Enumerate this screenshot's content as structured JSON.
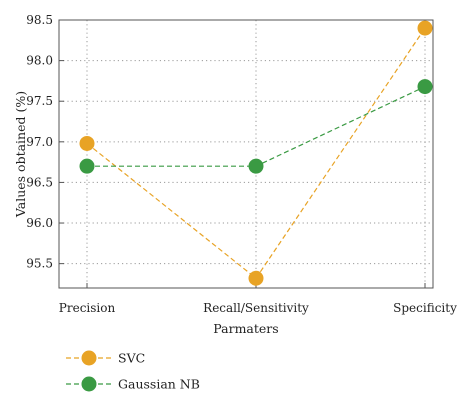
{
  "chart_data": {
    "type": "line",
    "categories": [
      "Precision",
      "Recall/Sensitivity",
      "Specificity"
    ],
    "series": [
      {
        "name": "SVC",
        "values": [
          96.98,
          95.32,
          98.4
        ],
        "color": "#e8a325"
      },
      {
        "name": "Gaussian NB",
        "values": [
          96.7,
          96.7,
          97.68
        ],
        "color": "#3a9a43"
      }
    ],
    "xlabel": "Parmaters",
    "ylabel": "Values obtained (%)",
    "ylim": [
      95.2,
      98.5
    ],
    "yticks": [
      "95.5",
      "96.0",
      "96.5",
      "97.0",
      "97.5",
      "98.0",
      "98.5"
    ],
    "grid": true,
    "line_style": "dashed",
    "legend_position": "bottom-left"
  }
}
